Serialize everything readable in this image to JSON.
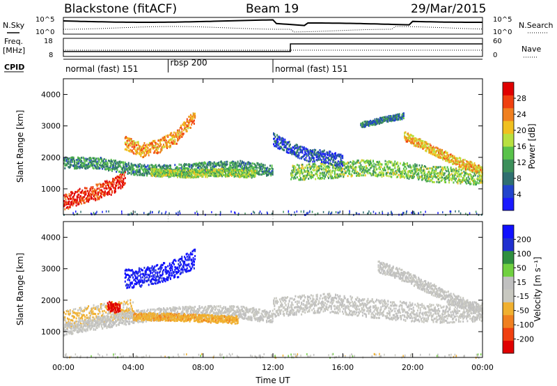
{
  "header": {
    "station": "Blackstone (fitACF)",
    "beam": "Beam 19",
    "date": "29/Mar/2015"
  },
  "top_panels": {
    "nsky_label": "N.Sky",
    "nsearch_label": "N.Search",
    "count_ticks": [
      "10^5",
      "10^0"
    ],
    "freq_label_1": "Freq.",
    "freq_label_2": "[MHz]",
    "freq_ticks": [
      "18",
      "8"
    ],
    "nave_label": "Nave",
    "nave_ticks": [
      "60",
      "0"
    ],
    "cpid_label": "CPID"
  },
  "cpid_segments": [
    {
      "label": "normal (fast) 151",
      "start": 0,
      "end": 6
    },
    {
      "label": "rbsp 200",
      "start": 6,
      "end": 12
    },
    {
      "label": "normal (fast) 151",
      "start": 12,
      "end": 24
    }
  ],
  "colors": {
    "power_scale": [
      "#1a1aff",
      "#2244cc",
      "#2f6f70",
      "#3c8f5a",
      "#59c24a",
      "#b8e040",
      "#f0c020",
      "#f08020",
      "#f04010",
      "#e00000"
    ],
    "velocity_scale": [
      "#e00000",
      "#f04010",
      "#f08020",
      "#f0b030",
      "#c8c8c0",
      "#c0c0c0",
      "#70d040",
      "#2f8f3f",
      "#2030d0",
      "#1010ff"
    ]
  },
  "chart_data": [
    {
      "type": "heatmap",
      "panel": "power",
      "ylabel": "Slant Range [km]",
      "xlabel": "Time UT",
      "x_ticks": [
        "00:00",
        "04:00",
        "08:00",
        "12:00",
        "16:00",
        "20:00",
        "00:00"
      ],
      "x_range_hours": [
        0,
        24
      ],
      "y_ticks": [
        "1000",
        "2000",
        "3000",
        "4000"
      ],
      "ylim": [
        180,
        4500
      ],
      "colorbar_label": "Power [dB]",
      "colorbar_ticks": [
        "28",
        "24",
        "20",
        "16",
        "12",
        "8",
        "4"
      ],
      "colorbar_range": [
        0,
        30
      ],
      "bands": [
        {
          "t": [
            0,
            1,
            2,
            3,
            3.5
          ],
          "r": [
            600,
            800,
            950,
            1150,
            1400
          ],
          "w": 250,
          "v": 27
        },
        {
          "t": [
            0,
            2,
            4,
            6,
            8,
            10,
            12
          ],
          "r": [
            1850,
            1850,
            1650,
            1600,
            1700,
            1750,
            1600
          ],
          "w": 180,
          "v": 10
        },
        {
          "t": [
            3.5,
            4.5,
            5.5,
            6.5,
            7.5
          ],
          "r": [
            2500,
            2250,
            2400,
            2700,
            3350
          ],
          "w": 220,
          "v": 22
        },
        {
          "t": [
            5,
            7,
            9,
            11
          ],
          "r": [
            1550,
            1500,
            1550,
            1500
          ],
          "w": 120,
          "v": 15
        },
        {
          "t": [
            13,
            15,
            17,
            19,
            21,
            24
          ],
          "r": [
            1550,
            1600,
            1700,
            1650,
            1500,
            1400
          ],
          "w": 250,
          "v": 14
        },
        {
          "t": [
            19.5,
            21,
            22.5,
            24
          ],
          "r": [
            2700,
            2300,
            1900,
            1600
          ],
          "w": 150,
          "v": 20
        },
        {
          "t": [
            17,
            18.5,
            19.5
          ],
          "r": [
            3050,
            3250,
            3350
          ],
          "w": 90,
          "v": 8
        },
        {
          "t": [
            12,
            13,
            14,
            15,
            16
          ],
          "r": [
            2600,
            2300,
            2100,
            2050,
            1900
          ],
          "w": 200,
          "v": 5
        }
      ]
    },
    {
      "type": "heatmap",
      "panel": "velocity",
      "ylabel": "Slant Range [km]",
      "xlabel": "Time UT",
      "x_ticks": [
        "00:00",
        "04:00",
        "08:00",
        "12:00",
        "16:00",
        "20:00",
        "00:00"
      ],
      "x_range_hours": [
        0,
        24
      ],
      "y_ticks": [
        "1000",
        "2000",
        "3000",
        "4000"
      ],
      "ylim": [
        180,
        4500
      ],
      "colorbar_label": "Velocity [m s⁻¹]",
      "colorbar_ticks": [
        "200",
        "100",
        "50",
        "15",
        "-15",
        "-50",
        "-100",
        "-200"
      ],
      "colorbar_range": [
        -250,
        250
      ],
      "bands": [
        {
          "t": [
            0,
            1,
            2,
            3,
            4
          ],
          "r": [
            1400,
            1500,
            1600,
            1700,
            1750
          ],
          "w": 300,
          "v": -60
        },
        {
          "t": [
            0,
            2,
            4,
            6,
            8,
            10,
            12
          ],
          "r": [
            1100,
            1300,
            1500,
            1600,
            1650,
            1650,
            1500
          ],
          "w": 200,
          "v": 0
        },
        {
          "t": [
            4,
            6,
            8,
            10
          ],
          "r": [
            1500,
            1500,
            1450,
            1400
          ],
          "w": 120,
          "v": -80
        },
        {
          "t": [
            3.5,
            5,
            6.5,
            7.5
          ],
          "r": [
            2700,
            2800,
            3050,
            3350
          ],
          "w": 300,
          "v": 210
        },
        {
          "t": [
            12,
            15,
            18,
            21,
            24
          ],
          "r": [
            1800,
            1950,
            1750,
            1600,
            1650
          ],
          "w": 300,
          "v": 0
        },
        {
          "t": [
            18,
            19.5,
            21,
            22.5,
            24
          ],
          "r": [
            3100,
            2800,
            2400,
            2000,
            1700
          ],
          "w": 180,
          "v": 5
        },
        {
          "t": [
            2.5,
            3.2
          ],
          "r": [
            1850,
            1750
          ],
          "w": 150,
          "v": -220
        }
      ]
    }
  ]
}
